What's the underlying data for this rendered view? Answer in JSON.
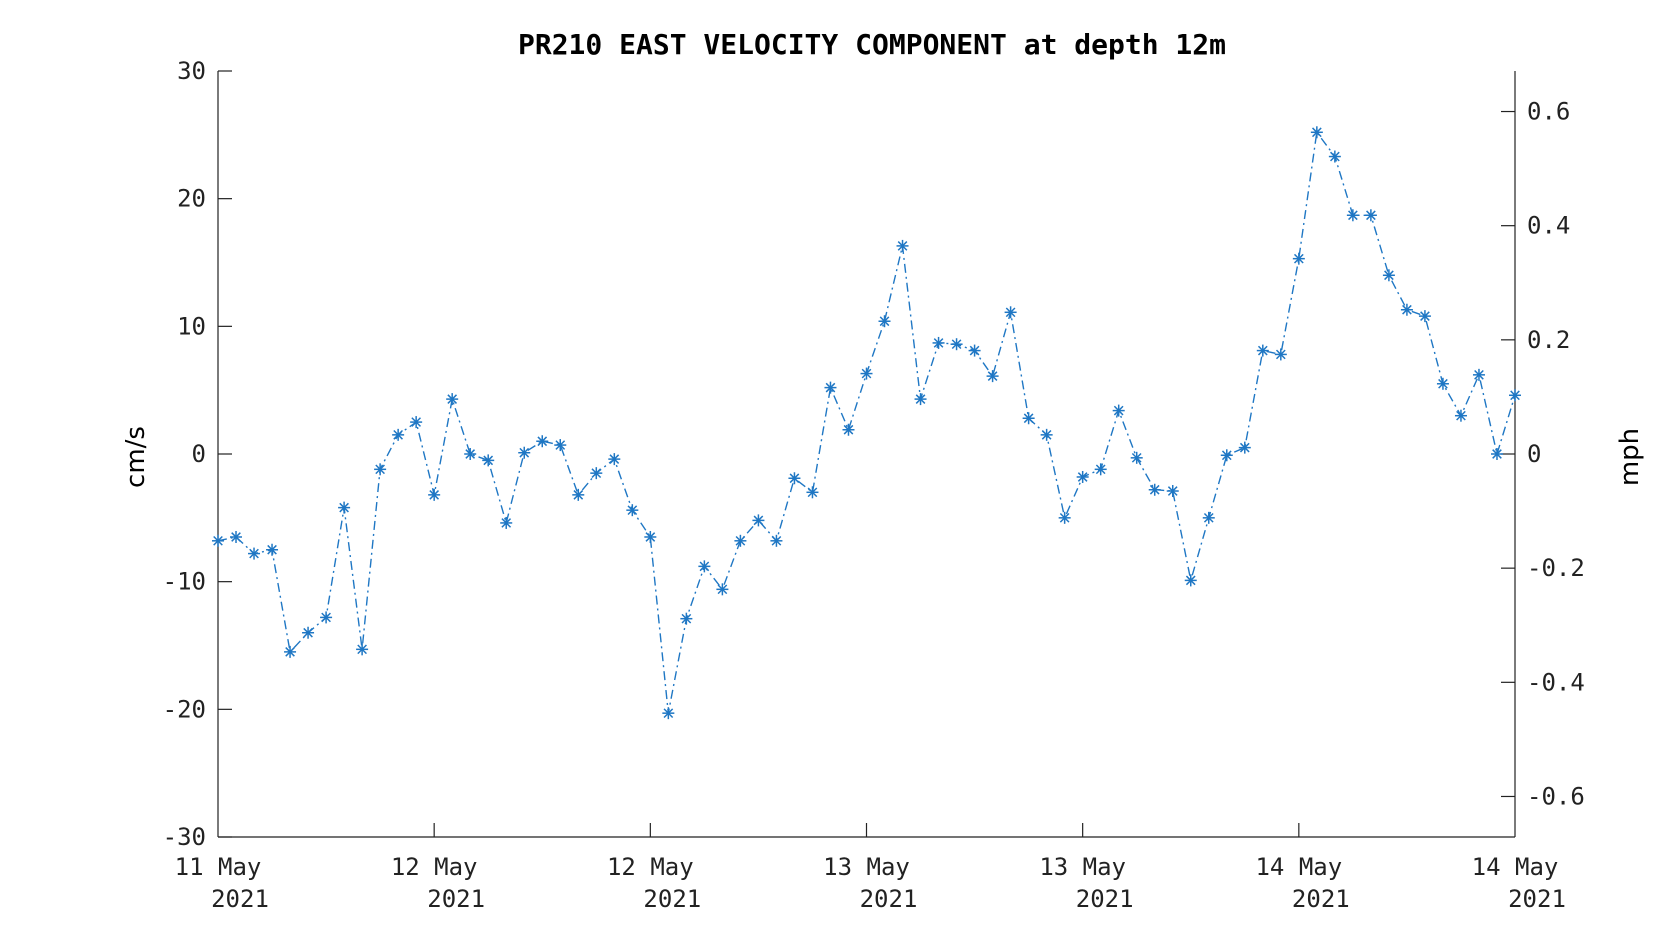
{
  "chart_data": {
    "type": "line",
    "title": "PR210 EAST VELOCITY COMPONENT at depth 12m",
    "ylabel": "cm/s",
    "y2label": "mph",
    "ylim": [
      -30,
      30
    ],
    "y2lim": [
      -0.671,
      0.671
    ],
    "yticks": [
      "30",
      "20",
      "10",
      "0",
      "-10",
      "-20",
      "-30"
    ],
    "y2ticks": [
      "0.6",
      "0.4",
      "0.2",
      "0",
      "-0.2",
      "-0.4",
      "-0.6"
    ],
    "xticks": [
      {
        "line1": "11 May",
        "line2": "2021"
      },
      {
        "line1": "12 May",
        "line2": "2021"
      },
      {
        "line1": "12 May",
        "line2": "2021"
      },
      {
        "line1": "13 May",
        "line2": "2021"
      },
      {
        "line1": "13 May",
        "line2": "2021"
      },
      {
        "line1": "14 May",
        "line2": "2021"
      },
      {
        "line1": "14 May",
        "line2": "2021"
      }
    ],
    "marker": "asterisk",
    "line_style": "dash-dot",
    "color": "#1f77c4",
    "grid": false,
    "series": [
      {
        "values": [
          -6.8,
          -6.5,
          -7.8,
          -7.5,
          -15.5,
          -14.0,
          -12.8,
          -4.2,
          -15.3,
          -1.2,
          1.5,
          2.5,
          -3.2,
          4.3,
          0.0,
          -0.5,
          -5.4,
          0.1,
          1.0,
          0.7,
          -3.2,
          -1.5,
          -0.4,
          -4.4,
          -6.5,
          -20.3,
          -12.9,
          -8.8,
          -10.6,
          -6.8,
          -5.2,
          -6.8,
          -1.9,
          -3.0,
          5.2,
          1.9,
          6.3,
          10.4,
          16.3,
          4.3,
          8.7,
          8.6,
          8.1,
          6.1,
          11.1,
          2.8,
          1.5,
          -5.0,
          -1.8,
          -1.2,
          3.4,
          -0.3,
          -2.8,
          -2.9,
          -9.9,
          -5.0,
          -0.1,
          0.5,
          8.1,
          7.8,
          15.3,
          25.2,
          23.3,
          18.7,
          18.7,
          14.0,
          11.3,
          10.8,
          5.5,
          3.0,
          6.2,
          0.0,
          4.6
        ]
      }
    ]
  }
}
